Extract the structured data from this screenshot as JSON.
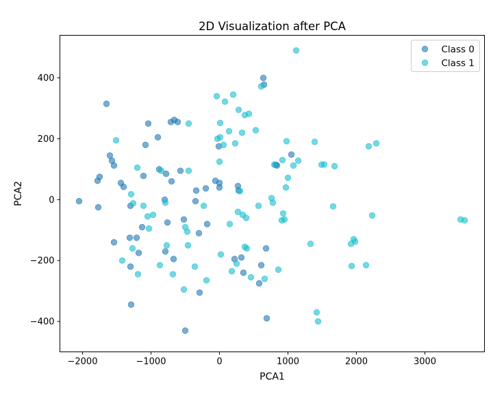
{
  "chart_data": {
    "type": "scatter",
    "title": "2D Visualization after PCA",
    "xlabel": "PCA1",
    "ylabel": "PCA2",
    "xlim": [
      -2330,
      3870
    ],
    "ylim": [
      -500,
      540
    ],
    "xticks": [
      -2000,
      -1000,
      0,
      1000,
      2000,
      3000
    ],
    "yticks": [
      -400,
      -200,
      0,
      200,
      400
    ],
    "grid": false,
    "legend_position": "top-right",
    "series": [
      {
        "name": "Class 0",
        "color": "#1f77b4",
        "points": [
          [
            -2050,
            -5
          ],
          [
            -1770,
            -25
          ],
          [
            -1780,
            62
          ],
          [
            -1750,
            75
          ],
          [
            -1650,
            315
          ],
          [
            -1600,
            145
          ],
          [
            -1570,
            128
          ],
          [
            -1540,
            112
          ],
          [
            -1540,
            -140
          ],
          [
            -1440,
            55
          ],
          [
            -1400,
            42
          ],
          [
            -1300,
            -20
          ],
          [
            -1310,
            -125
          ],
          [
            -1300,
            -220
          ],
          [
            -1290,
            -345
          ],
          [
            -1210,
            -125
          ],
          [
            -1180,
            -175
          ],
          [
            -1130,
            -90
          ],
          [
            -1110,
            78
          ],
          [
            -1080,
            180
          ],
          [
            -1040,
            250
          ],
          [
            -900,
            205
          ],
          [
            -880,
            100
          ],
          [
            -800,
            0
          ],
          [
            -780,
            85
          ],
          [
            -790,
            -170
          ],
          [
            -760,
            -75
          ],
          [
            -710,
            255
          ],
          [
            -700,
            60
          ],
          [
            -660,
            262
          ],
          [
            -670,
            -195
          ],
          [
            -610,
            255
          ],
          [
            -570,
            95
          ],
          [
            -520,
            -65
          ],
          [
            -500,
            -430
          ],
          [
            -340,
            30
          ],
          [
            -350,
            -5
          ],
          [
            -300,
            -110
          ],
          [
            -290,
            -305
          ],
          [
            -200,
            37
          ],
          [
            -180,
            -80
          ],
          [
            -60,
            62
          ],
          [
            -10,
            175
          ],
          [
            0,
            55
          ],
          [
            0,
            40
          ],
          [
            220,
            -195
          ],
          [
            270,
            45
          ],
          [
            280,
            30
          ],
          [
            320,
            -190
          ],
          [
            350,
            -240
          ],
          [
            580,
            -275
          ],
          [
            610,
            -215
          ],
          [
            640,
            400
          ],
          [
            650,
            378
          ],
          [
            680,
            -160
          ],
          [
            690,
            -390
          ],
          [
            820,
            115
          ],
          [
            840,
            112
          ],
          [
            1050,
            148
          ]
        ]
      },
      {
        "name": "Class 1",
        "color": "#17becf",
        "points": [
          [
            -1510,
            195
          ],
          [
            -1420,
            -200
          ],
          [
            -1290,
            18
          ],
          [
            -1270,
            -160
          ],
          [
            -1260,
            -12
          ],
          [
            -1200,
            105
          ],
          [
            -1190,
            -245
          ],
          [
            -1110,
            -20
          ],
          [
            -1050,
            -55
          ],
          [
            -1030,
            -95
          ],
          [
            -970,
            -50
          ],
          [
            -870,
            -215
          ],
          [
            -850,
            95
          ],
          [
            -790,
            -10
          ],
          [
            -770,
            -150
          ],
          [
            -680,
            -245
          ],
          [
            -520,
            -295
          ],
          [
            -500,
            -90
          ],
          [
            -470,
            -105
          ],
          [
            -460,
            -150
          ],
          [
            -450,
            250
          ],
          [
            -450,
            95
          ],
          [
            -360,
            -220
          ],
          [
            -230,
            -20
          ],
          [
            -190,
            -265
          ],
          [
            -40,
            340
          ],
          [
            -30,
            200
          ],
          [
            0,
            125
          ],
          [
            10,
            252
          ],
          [
            10,
            205
          ],
          [
            20,
            -180
          ],
          [
            60,
            180
          ],
          [
            80,
            322
          ],
          [
            140,
            225
          ],
          [
            150,
            -80
          ],
          [
            180,
            -235
          ],
          [
            200,
            345
          ],
          [
            230,
            185
          ],
          [
            250,
            -210
          ],
          [
            270,
            -40
          ],
          [
            280,
            295
          ],
          [
            300,
            28
          ],
          [
            330,
            220
          ],
          [
            340,
            -50
          ],
          [
            370,
            -155
          ],
          [
            370,
            278
          ],
          [
            390,
            -60
          ],
          [
            400,
            -160
          ],
          [
            430,
            282
          ],
          [
            460,
            -255
          ],
          [
            530,
            228
          ],
          [
            570,
            -20
          ],
          [
            610,
            372
          ],
          [
            660,
            -260
          ],
          [
            760,
            5
          ],
          [
            780,
            -10
          ],
          [
            800,
            115
          ],
          [
            860,
            -230
          ],
          [
            910,
            -68
          ],
          [
            920,
            130
          ],
          [
            930,
            -45
          ],
          [
            950,
            -65
          ],
          [
            970,
            40
          ],
          [
            980,
            192
          ],
          [
            1000,
            72
          ],
          [
            1080,
            112
          ],
          [
            1150,
            128
          ],
          [
            1120,
            490
          ],
          [
            1330,
            -145
          ],
          [
            1390,
            190
          ],
          [
            1420,
            -370
          ],
          [
            1440,
            -400
          ],
          [
            1490,
            115
          ],
          [
            1530,
            116
          ],
          [
            1660,
            -22
          ],
          [
            1680,
            110
          ],
          [
            1920,
            -145
          ],
          [
            1930,
            -218
          ],
          [
            1960,
            -130
          ],
          [
            1980,
            -138
          ],
          [
            2140,
            -215
          ],
          [
            2180,
            175
          ],
          [
            2230,
            -52
          ],
          [
            2290,
            185
          ],
          [
            3520,
            -65
          ],
          [
            3580,
            -68
          ]
        ]
      }
    ]
  }
}
